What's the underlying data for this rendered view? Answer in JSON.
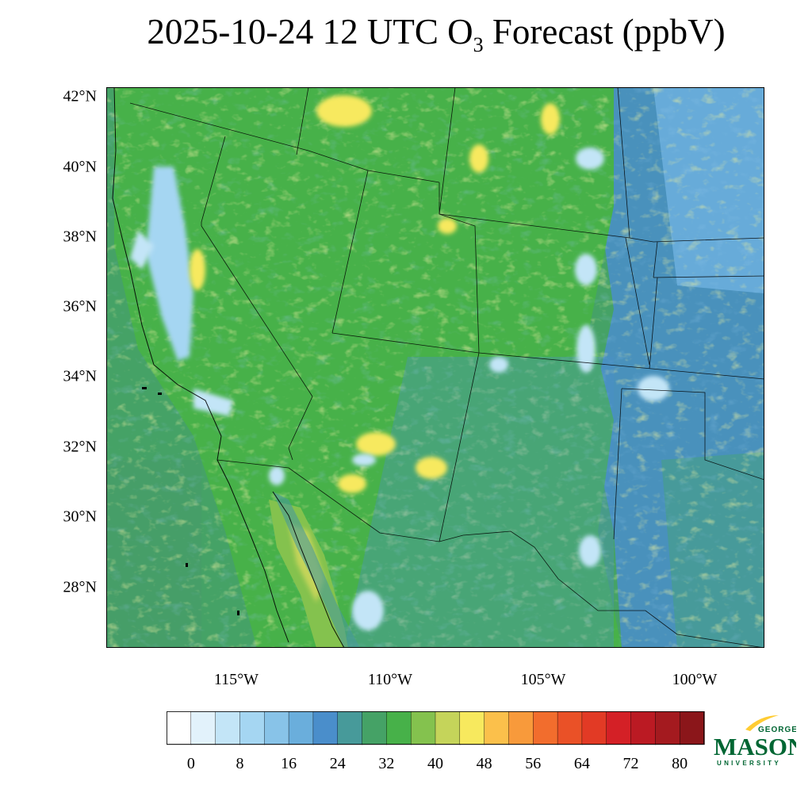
{
  "title": {
    "main": "2025-10-24 12 UTC O",
    "sub": "3",
    "rest": " Forecast (ppbV)"
  },
  "lat_labels": [
    "42°N",
    "40°N",
    "38°N",
    "36°N",
    "34°N",
    "32°N",
    "30°N",
    "28°N"
  ],
  "lon_labels": [
    "115°W",
    "110°W",
    "105°W",
    "100°W"
  ],
  "colorbar": {
    "colors": [
      "#ffffff",
      "#e2f2fb",
      "#c3e5f7",
      "#a5d6f2",
      "#88c3e8",
      "#6aaedc",
      "#4a8ecb",
      "#479a9a",
      "#45a266",
      "#47b149",
      "#84c24e",
      "#c5d45a",
      "#f7e95e",
      "#fbc04b",
      "#f89a3b",
      "#f26d2d",
      "#ea5127",
      "#e23a25",
      "#d42026",
      "#bb1a23",
      "#a41a1f",
      "#8b161a"
    ],
    "labels": [
      "0",
      "8",
      "16",
      "24",
      "32",
      "40",
      "48",
      "56",
      "64",
      "72",
      "80"
    ]
  },
  "logo": {
    "top": "GEORGE",
    "main": "MASON",
    "bottom": "UNIVERSITY",
    "green": "#006633",
    "gold": "#ffcc33"
  }
}
